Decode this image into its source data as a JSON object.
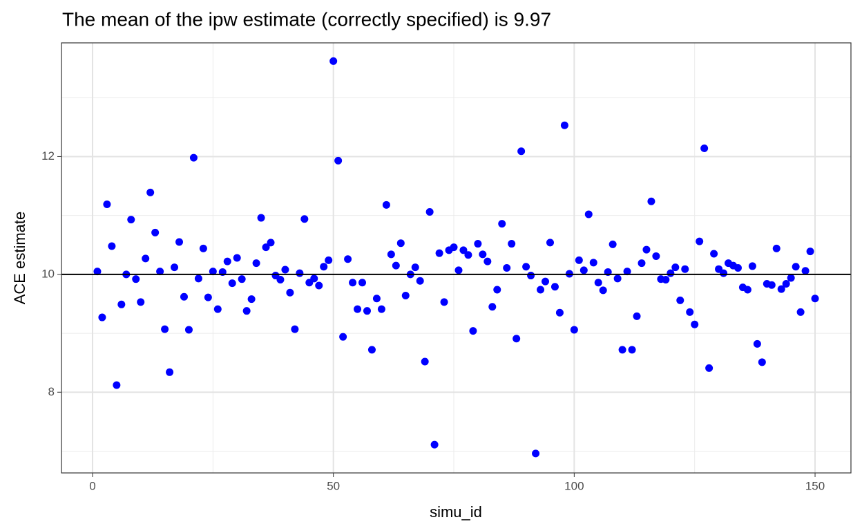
{
  "chart_data": {
    "type": "scatter",
    "title": "The mean of the ipw estimate (correctly specified) is  9.97",
    "x_label": "simu_id",
    "y_label": "ACE estimate",
    "x": [
      1,
      2,
      3,
      4,
      5,
      6,
      7,
      8,
      9,
      10,
      11,
      12,
      13,
      14,
      15,
      16,
      17,
      18,
      19,
      20,
      21,
      22,
      23,
      24,
      25,
      26,
      27,
      28,
      29,
      30,
      31,
      32,
      33,
      34,
      35,
      36,
      37,
      38,
      39,
      40,
      41,
      42,
      43,
      44,
      45,
      46,
      47,
      48,
      49,
      50,
      51,
      52,
      53,
      54,
      55,
      56,
      57,
      58,
      59,
      60,
      61,
      62,
      63,
      64,
      65,
      66,
      67,
      68,
      69,
      70,
      71,
      72,
      73,
      74,
      75,
      76,
      77,
      78,
      79,
      80,
      81,
      82,
      83,
      84,
      85,
      86,
      87,
      88,
      89,
      90,
      91,
      92,
      93,
      94,
      95,
      96,
      97,
      98,
      99,
      100,
      101,
      102,
      103,
      104,
      105,
      106,
      107,
      108,
      109,
      110,
      111,
      112,
      113,
      114,
      115,
      116,
      117,
      118,
      119,
      120,
      121,
      122,
      123,
      124,
      125,
      126,
      127,
      128,
      129,
      130,
      131,
      132,
      133,
      134,
      135,
      136,
      137,
      138,
      139,
      140,
      141,
      142,
      143,
      144,
      145,
      146,
      147,
      148,
      149,
      150
    ],
    "series": [
      {
        "color": "#0000ff",
        "values": [
          10.05,
          9.27,
          11.19,
          10.48,
          8.12,
          9.49,
          10.0,
          10.93,
          9.92,
          9.53,
          10.27,
          11.39,
          10.71,
          10.05,
          9.07,
          8.34,
          10.12,
          10.55,
          9.62,
          9.06,
          11.98,
          9.93,
          10.44,
          9.61,
          10.05,
          9.41,
          10.04,
          10.22,
          9.85,
          10.28,
          9.92,
          9.38,
          9.58,
          10.19,
          10.96,
          10.46,
          10.54,
          9.98,
          9.91,
          10.08,
          9.69,
          9.07,
          10.02,
          10.94,
          9.86,
          9.93,
          9.81,
          10.13,
          10.24,
          13.62,
          11.93,
          8.94,
          10.26,
          9.86,
          9.41,
          9.86,
          9.38,
          8.72,
          9.59,
          9.41,
          11.18,
          10.34,
          10.15,
          10.53,
          9.64,
          10.0,
          10.12,
          9.89,
          8.52,
          11.06,
          7.11,
          10.36,
          9.53,
          10.41,
          10.46,
          10.07,
          10.41,
          10.33,
          9.04,
          10.52,
          10.34,
          10.22,
          9.45,
          9.74,
          10.86,
          10.11,
          10.52,
          8.91,
          12.09,
          10.13,
          9.98,
          6.96,
          9.74,
          9.88,
          10.54,
          9.79,
          9.35,
          12.53,
          10.01,
          9.06,
          10.24,
          10.07,
          11.02,
          10.2,
          9.86,
          9.73,
          10.04,
          10.51,
          9.93,
          8.72,
          10.05,
          8.72,
          9.29,
          10.19,
          10.42,
          11.24,
          10.31,
          9.92,
          9.91,
          10.02,
          10.12,
          9.56,
          10.09,
          9.36,
          9.15,
          10.56,
          12.14,
          8.41,
          10.35,
          10.09,
          10.02,
          10.19,
          10.15,
          10.11,
          9.78,
          9.74,
          10.14,
          8.82,
          8.51,
          9.84,
          9.82,
          10.44,
          9.75,
          9.84,
          9.94,
          10.13,
          9.36,
          10.06,
          10.39,
          9.59
        ]
      }
    ],
    "xlim": [
      -6.45,
      157.45
    ],
    "ylim": [
      6.63,
      13.93
    ],
    "xticks": [
      0,
      50,
      100,
      150
    ],
    "yticks": [
      8,
      10,
      12
    ],
    "x_minor_gridlines": [
      25,
      75,
      125
    ],
    "y_minor_gridlines": [
      7,
      9,
      11,
      13
    ],
    "hline": 10,
    "grid": true
  }
}
